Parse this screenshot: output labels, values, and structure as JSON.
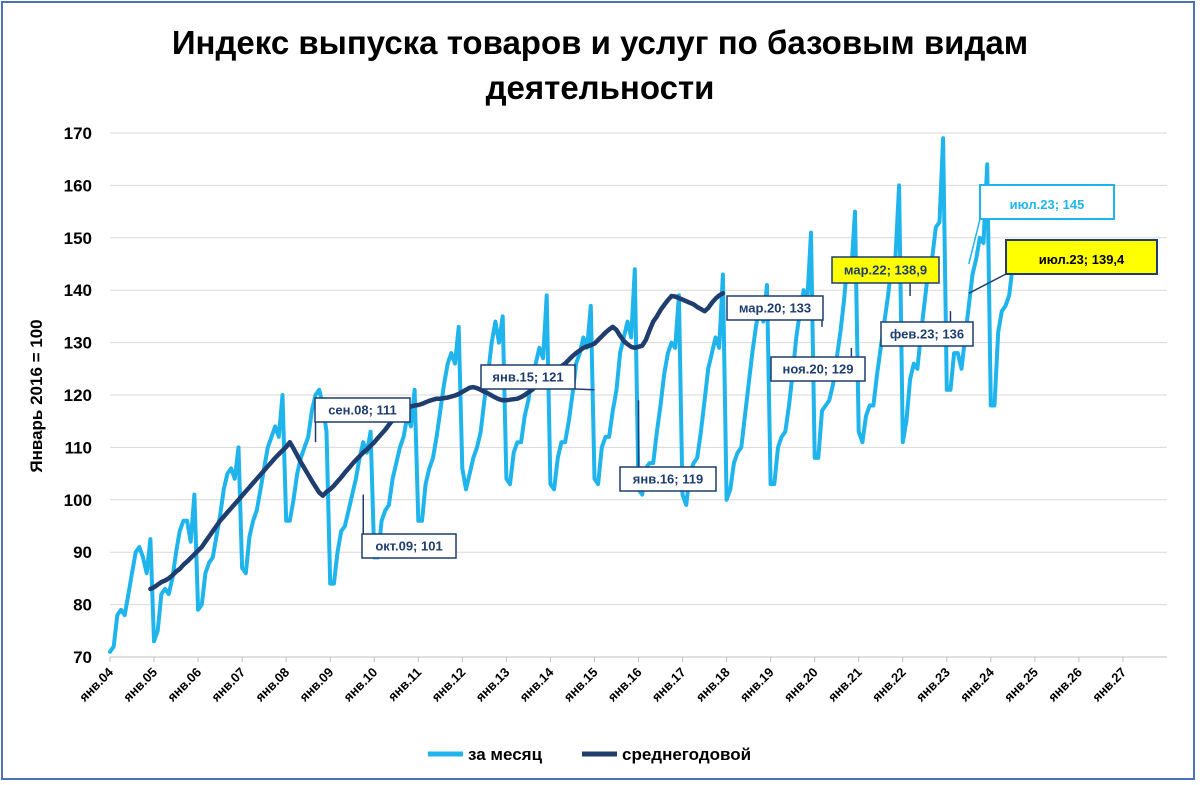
{
  "chart_data": {
    "type": "line",
    "title_lines": [
      "Индекс выпуска товаров и услуг по базовым видам",
      "деятельности"
    ],
    "ylabel": "Январь 2016 = 100",
    "ylim": [
      70,
      170
    ],
    "yticks": [
      70,
      80,
      90,
      100,
      110,
      120,
      130,
      140,
      150,
      160,
      170
    ],
    "x_start_year": 2004,
    "x_months_total": 288,
    "xtick_labels": [
      "янв.04",
      "янв.05",
      "янв.06",
      "янв.07",
      "янв.08",
      "янв.09",
      "янв.10",
      "янв.11",
      "янв.12",
      "янв.13",
      "янв.14",
      "янв.15",
      "янв.16",
      "янв.17",
      "янв.18",
      "янв.19",
      "янв.20",
      "янв.21",
      "янв.22",
      "янв.23",
      "янв.24",
      "янв.25",
      "янв.26",
      "янв.27"
    ],
    "grid": true,
    "legend_position": "bottom",
    "colors": {
      "monthly": "#1fb4ec",
      "average": "#1f3d6e",
      "gridline": "#d9d9d9"
    },
    "series": [
      {
        "name": "за месяц",
        "color": "#1fb4ec",
        "values": [
          71,
          72,
          78,
          79,
          78,
          82,
          86,
          90,
          91,
          89,
          86,
          92.5,
          73,
          75,
          82,
          83,
          82,
          85,
          90,
          94,
          96,
          96,
          92,
          101,
          79,
          80,
          86,
          88,
          89,
          93,
          97,
          102,
          105,
          106,
          104,
          110,
          87,
          86,
          93,
          96,
          98,
          102,
          106,
          110,
          112,
          114,
          112,
          120,
          96,
          96,
          100,
          105,
          108,
          110,
          112,
          117,
          120,
          121,
          118,
          113,
          84,
          84,
          90,
          94,
          95,
          98,
          101,
          104,
          108,
          111,
          109,
          113,
          89,
          89,
          96,
          98,
          99,
          104,
          107,
          110,
          112,
          116,
          114,
          121,
          96,
          96,
          103,
          106,
          108,
          112,
          117,
          122,
          126,
          128,
          126,
          133,
          106,
          102,
          105,
          108,
          110,
          113,
          119,
          124,
          130,
          134,
          130,
          135,
          104,
          103,
          109,
          111,
          111,
          116,
          119,
          124,
          126,
          129,
          127,
          139,
          103,
          102,
          108,
          111,
          111,
          115,
          120,
          126,
          128,
          131,
          129,
          137,
          104,
          103,
          110,
          112,
          112,
          117,
          121,
          128,
          131,
          134,
          131,
          144,
          102,
          101,
          106,
          107,
          107,
          113,
          118,
          124,
          128,
          130,
          129,
          139,
          101,
          99,
          105,
          107,
          108,
          113,
          119,
          125,
          128,
          131,
          129,
          143,
          100,
          102,
          107,
          109,
          110,
          116,
          122,
          128,
          133,
          137,
          134,
          141,
          103,
          103,
          110,
          112,
          113,
          118,
          124,
          131,
          136,
          140,
          138,
          151,
          108,
          108,
          117,
          118,
          119,
          122,
          127,
          132,
          138,
          146,
          144,
          155,
          113,
          111,
          116,
          118,
          118,
          124,
          129,
          134,
          139,
          145,
          146,
          160,
          111,
          115,
          123,
          126,
          125,
          132,
          138,
          144,
          146,
          152,
          153,
          169,
          121,
          121,
          128,
          128,
          125,
          131,
          137,
          143,
          146,
          150,
          149,
          164,
          118,
          118,
          132,
          136,
          137,
          139,
          145
        ]
      },
      {
        "name": "среднегодовой",
        "color": "#1f3d6e",
        "start_month_index": 11,
        "values": [
          83,
          83.3,
          83.8,
          84.3,
          84.6,
          85,
          85.6,
          86.3,
          86.8,
          87.6,
          88.2,
          88.9,
          89.6,
          90.3,
          91,
          92,
          93,
          94,
          95,
          96,
          96.8,
          97.6,
          98.4,
          99.2,
          100,
          100.8,
          101.6,
          102.4,
          103.2,
          104,
          104.8,
          105.6,
          106.4,
          107.2,
          108,
          108.7,
          109.4,
          110.1,
          111,
          109.8,
          108.5,
          107.2,
          106,
          104.8,
          103.6,
          102.5,
          101.4,
          100.8,
          101.5,
          102,
          102.7,
          103.5,
          104.3,
          105.2,
          106,
          106.8,
          107.6,
          108.3,
          109,
          109.6,
          110.3,
          111,
          111.8,
          112.6,
          113.4,
          114.3,
          115.2,
          116,
          116.6,
          117.1,
          117.5,
          117.8,
          118,
          118.1,
          118.3,
          118.6,
          118.9,
          119.1,
          119.3,
          119.3,
          119.4,
          119.5,
          119.7,
          119.9,
          120.2,
          120.6,
          121,
          121.4,
          121.5,
          121.3,
          121,
          120.6,
          120.3,
          119.9,
          119.5,
          119.2,
          119,
          119,
          119.1,
          119.2,
          119.3,
          119.6,
          120,
          120.5,
          121,
          121.6,
          122.3,
          123,
          123.7,
          124.2,
          124.6,
          125,
          125.5,
          126,
          126.7,
          127.4,
          128,
          128.5,
          129,
          129.3,
          129.5,
          129.8,
          130.5,
          131.2,
          131.9,
          132.5,
          133,
          132.4,
          131.3,
          130.3,
          129.7,
          129.2,
          129,
          129.2,
          129.4,
          130.5,
          132.3,
          134,
          135,
          136.2,
          137.2,
          138.1,
          138.9,
          138.8,
          138.5,
          138.2,
          137.9,
          137.6,
          137.3,
          136.8,
          136.4,
          136,
          136.6,
          137.6,
          138.4,
          139,
          139.4
        ]
      }
    ],
    "annotations": [
      {
        "label": "сен.08; 111",
        "month": 56,
        "value": 111,
        "style": "navy"
      },
      {
        "label": "окт.09; 101",
        "month": 69,
        "value": 101,
        "style": "navy"
      },
      {
        "label": "янв.15; 121",
        "month": 132,
        "value": 121,
        "style": "navy"
      },
      {
        "label": "янв.16; 119",
        "month": 144,
        "value": 119,
        "style": "navy"
      },
      {
        "label": "мар.20; 133",
        "month": 194,
        "value": 133,
        "style": "navy"
      },
      {
        "label": "ноя.20; 129",
        "month": 202,
        "value": 129,
        "style": "navy"
      },
      {
        "label": "мар.22; 138,9",
        "month": 218,
        "value": 138.9,
        "style": "yellow"
      },
      {
        "label": "фев.23; 136",
        "month": 229,
        "value": 136,
        "style": "navy"
      },
      {
        "label": "июл.23; 145",
        "month": 234,
        "value": 145,
        "style": "cyan"
      },
      {
        "label": "июл.23; 139,4",
        "month": 234,
        "value": 139.4,
        "style": "yellow-big"
      }
    ],
    "legend": [
      {
        "label": "за месяц",
        "color": "#1fb4ec"
      },
      {
        "label": "среднегодовой",
        "color": "#1f3d6e"
      }
    ]
  }
}
